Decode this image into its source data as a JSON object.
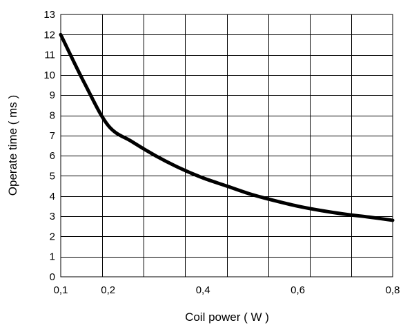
{
  "chart_data": {
    "type": "line",
    "title": "",
    "xlabel": "Coil  power ( W )",
    "ylabel": "Operate  time  ( ms )",
    "xlim": [
      0.1,
      0.8
    ],
    "ylim": [
      0,
      13
    ],
    "grid": true,
    "x_ticks": [
      "0,1",
      "0,2",
      "0,4",
      "0,6",
      "0,8"
    ],
    "y_ticks": [
      "0",
      "1",
      "2",
      "3",
      "4",
      "5",
      "6",
      "7",
      "8",
      "9",
      "10",
      "11",
      "12",
      "13"
    ],
    "series": [
      {
        "color": "#000000",
        "x": [
          0.1,
          0.15,
          0.2,
          0.25,
          0.3,
          0.35,
          0.4,
          0.45,
          0.5,
          0.55,
          0.6,
          0.65,
          0.7,
          0.75,
          0.8
        ],
        "y": [
          12.0,
          9.6,
          7.5,
          6.7,
          6.0,
          5.4,
          4.9,
          4.5,
          4.1,
          3.78,
          3.5,
          3.28,
          3.1,
          2.96,
          2.8
        ]
      }
    ]
  }
}
